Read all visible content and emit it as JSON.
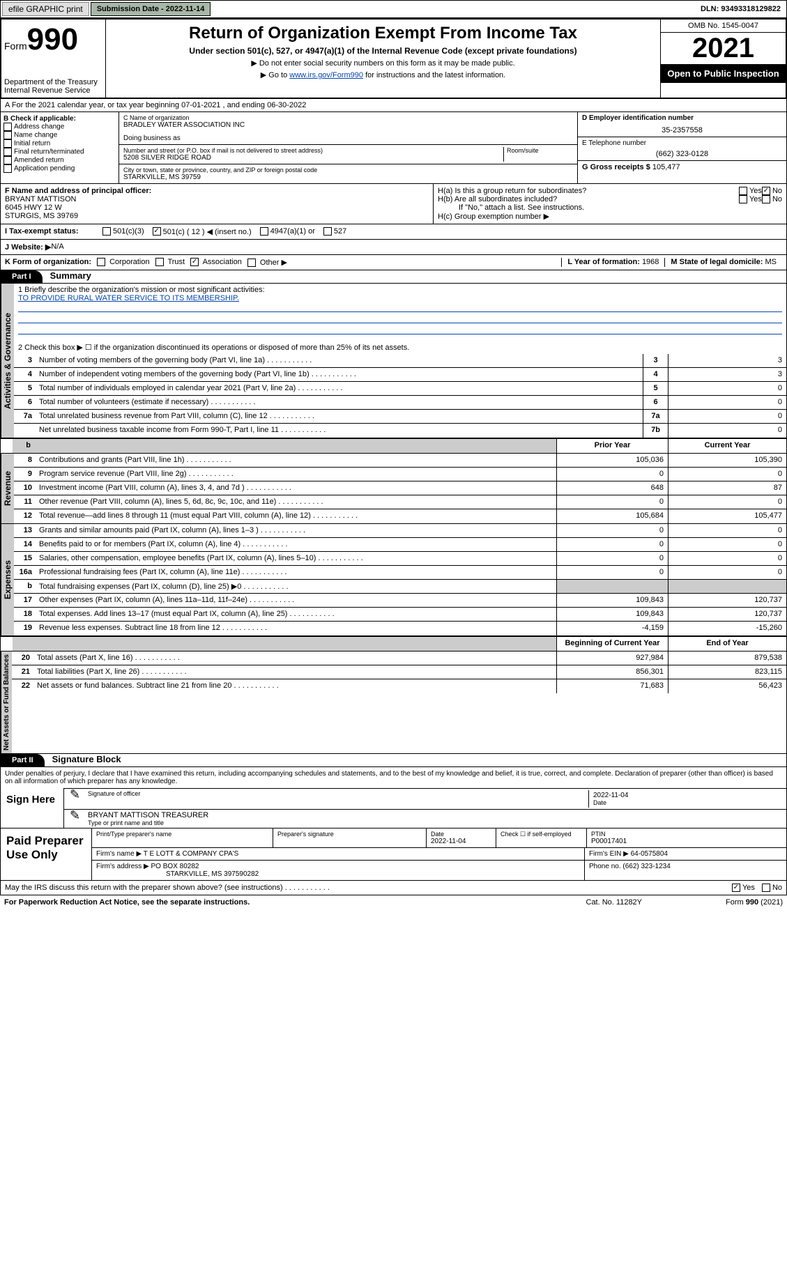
{
  "topbar": {
    "efile": "efile GRAPHIC print",
    "submission": "Submission Date - 2022-11-14",
    "dln": "DLN: 93493318129822"
  },
  "header": {
    "form_word": "Form",
    "form_no": "990",
    "dept": "Department of the Treasury",
    "irs": "Internal Revenue Service",
    "title": "Return of Organization Exempt From Income Tax",
    "sub1": "Under section 501(c), 527, or 4947(a)(1) of the Internal Revenue Code (except private foundations)",
    "sub2": "▶ Do not enter social security numbers on this form as it may be made public.",
    "sub3_pre": "▶ Go to ",
    "sub3_link": "www.irs.gov/Form990",
    "sub3_post": " for instructions and the latest information.",
    "omb": "OMB No. 1545-0047",
    "year": "2021",
    "open": "Open to Public Inspection"
  },
  "row_a": "A For the 2021 calendar year, or tax year beginning 07-01-2021   , and ending 06-30-2022",
  "col_b": {
    "hdr": "B Check if applicable:",
    "items": [
      "Address change",
      "Name change",
      "Initial return",
      "Final return/terminated",
      "Amended return",
      "Application pending"
    ]
  },
  "col_c": {
    "name_lbl": "C Name of organization",
    "name": "BRADLEY WATER ASSOCIATION INC",
    "dba_lbl": "Doing business as",
    "addr_lbl": "Number and street (or P.O. box if mail is not delivered to street address)",
    "room_lbl": "Room/suite",
    "addr": "5208 SILVER RIDGE ROAD",
    "city_lbl": "City or town, state or province, country, and ZIP or foreign postal code",
    "city": "STARKVILLE, MS  39759"
  },
  "col_de": {
    "d_lbl": "D Employer identification number",
    "d_val": "35-2357558",
    "e_lbl": "E Telephone number",
    "e_val": "(662) 323-0128",
    "g_lbl": "G Gross receipts $ ",
    "g_val": "105,477"
  },
  "col_f": {
    "lbl": "F  Name and address of principal officer:",
    "name": "BRYANT MATTISON",
    "addr1": "6045 HWY 12 W",
    "addr2": "STURGIS, MS  39769"
  },
  "col_h": {
    "ha": "H(a)  Is this a group return for subordinates?",
    "hb": "H(b)  Are all subordinates included?",
    "hb_note": "If \"No,\" attach a list. See instructions.",
    "hc": "H(c)  Group exemption number ▶",
    "yes": "Yes",
    "no": "No"
  },
  "row_i": {
    "lbl": "I    Tax-exempt status:",
    "opts": [
      "501(c)(3)",
      "501(c) ( 12 ) ◀ (insert no.)",
      "4947(a)(1) or",
      "527"
    ]
  },
  "row_j": {
    "lbl": "J   Website: ▶ ",
    "val": "N/A"
  },
  "row_k": {
    "lbl": "K Form of organization:",
    "opts": [
      "Corporation",
      "Trust",
      "Association",
      "Other ▶"
    ],
    "l_lbl": "L Year of formation: ",
    "l_val": "1968",
    "m_lbl": "M State of legal domicile: ",
    "m_val": "MS"
  },
  "part1": {
    "hdr": "Part I",
    "title": "Summary"
  },
  "mission": {
    "q1": "1  Briefly describe the organization's mission or most significant activities:",
    "text": "TO PROVIDE RURAL WATER SERVICE TO ITS MEMBERSHIP.",
    "q2": "2   Check this box ▶ ☐  if the organization discontinued its operations or disposed of more than 25% of its net assets."
  },
  "gov_lines": [
    {
      "n": "3",
      "t": "Number of voting members of the governing body (Part VI, line 1a)",
      "b": "3",
      "v": "3"
    },
    {
      "n": "4",
      "t": "Number of independent voting members of the governing body (Part VI, line 1b)",
      "b": "4",
      "v": "3"
    },
    {
      "n": "5",
      "t": "Total number of individuals employed in calendar year 2021 (Part V, line 2a)",
      "b": "5",
      "v": "0"
    },
    {
      "n": "6",
      "t": "Total number of volunteers (estimate if necessary)",
      "b": "6",
      "v": "0"
    },
    {
      "n": "7a",
      "t": "Total unrelated business revenue from Part VIII, column (C), line 12",
      "b": "7a",
      "v": "0"
    },
    {
      "n": "",
      "t": "Net unrelated business taxable income from Form 990-T, Part I, line 11",
      "b": "7b",
      "v": "0"
    }
  ],
  "col_hdrs": {
    "prior": "Prior Year",
    "current": "Current Year",
    "beg": "Beginning of Current Year",
    "end": "End of Year"
  },
  "rev_lines": [
    {
      "n": "8",
      "t": "Contributions and grants (Part VIII, line 1h)",
      "p": "105,036",
      "c": "105,390"
    },
    {
      "n": "9",
      "t": "Program service revenue (Part VIII, line 2g)",
      "p": "0",
      "c": "0"
    },
    {
      "n": "10",
      "t": "Investment income (Part VIII, column (A), lines 3, 4, and 7d )",
      "p": "648",
      "c": "87"
    },
    {
      "n": "11",
      "t": "Other revenue (Part VIII, column (A), lines 5, 6d, 8c, 9c, 10c, and 11e)",
      "p": "0",
      "c": "0"
    },
    {
      "n": "12",
      "t": "Total revenue—add lines 8 through 11 (must equal Part VIII, column (A), line 12)",
      "p": "105,684",
      "c": "105,477"
    }
  ],
  "exp_lines": [
    {
      "n": "13",
      "t": "Grants and similar amounts paid (Part IX, column (A), lines 1–3 )",
      "p": "0",
      "c": "0"
    },
    {
      "n": "14",
      "t": "Benefits paid to or for members (Part IX, column (A), line 4)",
      "p": "0",
      "c": "0"
    },
    {
      "n": "15",
      "t": "Salaries, other compensation, employee benefits (Part IX, column (A), lines 5–10)",
      "p": "0",
      "c": "0"
    },
    {
      "n": "16a",
      "t": "Professional fundraising fees (Part IX, column (A), line 11e)",
      "p": "0",
      "c": "0"
    },
    {
      "n": "b",
      "t": "Total fundraising expenses (Part IX, column (D), line 25) ▶0",
      "p": "",
      "c": "",
      "shade": true
    },
    {
      "n": "17",
      "t": "Other expenses (Part IX, column (A), lines 11a–11d, 11f–24e)",
      "p": "109,843",
      "c": "120,737"
    },
    {
      "n": "18",
      "t": "Total expenses. Add lines 13–17 (must equal Part IX, column (A), line 25)",
      "p": "109,843",
      "c": "120,737"
    },
    {
      "n": "19",
      "t": "Revenue less expenses. Subtract line 18 from line 12",
      "p": "-4,159",
      "c": "-15,260"
    }
  ],
  "net_lines": [
    {
      "n": "20",
      "t": "Total assets (Part X, line 16)",
      "p": "927,984",
      "c": "879,538"
    },
    {
      "n": "21",
      "t": "Total liabilities (Part X, line 26)",
      "p": "856,301",
      "c": "823,115"
    },
    {
      "n": "22",
      "t": "Net assets or fund balances. Subtract line 21 from line 20",
      "p": "71,683",
      "c": "56,423"
    }
  ],
  "part2": {
    "hdr": "Part II",
    "title": "Signature Block"
  },
  "sig": {
    "penalty": "Under penalties of perjury, I declare that I have examined this return, including accompanying schedules and statements, and to the best of my knowledge and belief, it is true, correct, and complete. Declaration of preparer (other than officer) is based on all information of which preparer has any knowledge.",
    "sign_here": "Sign Here",
    "sig_officer": "Signature of officer",
    "date": "2022-11-04",
    "date_lbl": "Date",
    "name": "BRYANT MATTISON TREASURER",
    "name_lbl": "Type or print name and title"
  },
  "prep": {
    "hdr": "Paid Preparer Use Only",
    "cols": [
      "Print/Type preparer's name",
      "Preparer's signature",
      "Date",
      "",
      "PTIN"
    ],
    "date": "2022-11-04",
    "check_lbl": "Check ☐ if self-employed",
    "ptin": "P00017401",
    "firm_name_lbl": "Firm's name    ▶ ",
    "firm_name": "T E LOTT & COMPANY CPA'S",
    "firm_ein_lbl": "Firm's EIN ▶ ",
    "firm_ein": "64-0575804",
    "firm_addr_lbl": "Firm's address ▶ ",
    "firm_addr1": "PO BOX 80282",
    "firm_addr2": "STARKVILLE, MS  397590282",
    "phone_lbl": "Phone no. ",
    "phone": "(662) 323-1234"
  },
  "footer": {
    "discuss": "May the IRS discuss this return with the preparer shown above? (see instructions)",
    "yes": "Yes",
    "no": "No",
    "pra": "For Paperwork Reduction Act Notice, see the separate instructions.",
    "cat": "Cat. No. 11282Y",
    "form": "Form 990 (2021)"
  },
  "tabs": {
    "gov": "Activities & Governance",
    "rev": "Revenue",
    "exp": "Expenses",
    "net": "Net Assets or Fund Balances"
  }
}
